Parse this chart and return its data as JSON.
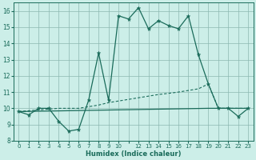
{
  "xlabel": "Humidex (Indice chaleur)",
  "bg_color": "#cceee8",
  "grid_color": "#8cb8b0",
  "line_color": "#1a6b5a",
  "xlim": [
    -0.5,
    23.5
  ],
  "ylim": [
    8.0,
    16.5
  ],
  "yticks": [
    8,
    9,
    10,
    11,
    12,
    13,
    14,
    15,
    16
  ],
  "xtick_labels": [
    "0",
    "1",
    "2",
    "3",
    "4",
    "5",
    "6",
    "7",
    "8",
    "9",
    "10",
    "",
    "12",
    "13",
    "14",
    "15",
    "16",
    "17",
    "18",
    "19",
    "20",
    "21",
    "22",
    "23"
  ],
  "line1_x": [
    0,
    1,
    2,
    3,
    4,
    5,
    6,
    7,
    8,
    9,
    10,
    11,
    12,
    13,
    14,
    15,
    16,
    17,
    18,
    19,
    20,
    21,
    22,
    23
  ],
  "line1_y": [
    9.8,
    9.6,
    10.0,
    10.0,
    9.2,
    8.6,
    8.7,
    10.5,
    13.4,
    10.5,
    15.7,
    15.5,
    16.2,
    14.9,
    15.4,
    15.1,
    14.9,
    15.7,
    13.3,
    11.5,
    10.0,
    10.0,
    9.5,
    10.0
  ],
  "line2_x": [
    0,
    1,
    2,
    3,
    4,
    5,
    6,
    7,
    8,
    9,
    10,
    11,
    12,
    13,
    14,
    15,
    16,
    17,
    18,
    19,
    20,
    21,
    22,
    23
  ],
  "line2_y": [
    9.8,
    9.85,
    9.9,
    9.95,
    10.0,
    10.0,
    10.0,
    10.1,
    10.2,
    10.35,
    10.45,
    10.55,
    10.65,
    10.75,
    10.85,
    10.92,
    11.0,
    11.1,
    11.2,
    11.5,
    10.0,
    10.0,
    10.0,
    10.0
  ],
  "line3_x": [
    0,
    19,
    20,
    23
  ],
  "line3_y": [
    9.8,
    10.0,
    10.0,
    10.0
  ]
}
